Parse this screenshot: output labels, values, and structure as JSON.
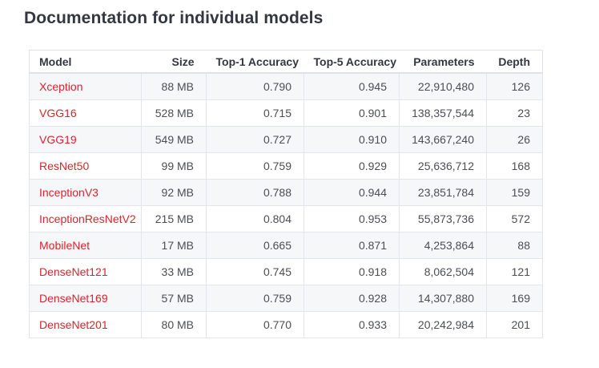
{
  "page": {
    "title": "Documentation for individual models"
  },
  "table": {
    "columns": [
      {
        "label": "Model"
      },
      {
        "label": "Size"
      },
      {
        "label": "Top-1 Accuracy"
      },
      {
        "label": "Top-5 Accuracy"
      },
      {
        "label": "Parameters"
      },
      {
        "label": "Depth"
      }
    ],
    "rows": [
      {
        "model": "Xception",
        "size": "88 MB",
        "top1": "0.790",
        "top5": "0.945",
        "parameters": "22,910,480",
        "depth": "126"
      },
      {
        "model": "VGG16",
        "size": "528 MB",
        "top1": "0.715",
        "top5": "0.901",
        "parameters": "138,357,544",
        "depth": "23"
      },
      {
        "model": "VGG19",
        "size": "549 MB",
        "top1": "0.727",
        "top5": "0.910",
        "parameters": "143,667,240",
        "depth": "26"
      },
      {
        "model": "ResNet50",
        "size": "99 MB",
        "top1": "0.759",
        "top5": "0.929",
        "parameters": "25,636,712",
        "depth": "168"
      },
      {
        "model": "InceptionV3",
        "size": "92 MB",
        "top1": "0.788",
        "top5": "0.944",
        "parameters": "23,851,784",
        "depth": "159"
      },
      {
        "model": "InceptionResNetV2",
        "size": "215 MB",
        "top1": "0.804",
        "top5": "0.953",
        "parameters": "55,873,736",
        "depth": "572"
      },
      {
        "model": "MobileNet",
        "size": "17 MB",
        "top1": "0.665",
        "top5": "0.871",
        "parameters": "4,253,864",
        "depth": "88"
      },
      {
        "model": "DenseNet121",
        "size": "33 MB",
        "top1": "0.745",
        "top5": "0.918",
        "parameters": "8,062,504",
        "depth": "121"
      },
      {
        "model": "DenseNet169",
        "size": "57 MB",
        "top1": "0.759",
        "top5": "0.928",
        "parameters": "14,307,880",
        "depth": "169"
      },
      {
        "model": "DenseNet201",
        "size": "80 MB",
        "top1": "0.770",
        "top5": "0.933",
        "parameters": "20,242,984",
        "depth": "201"
      }
    ]
  },
  "colors": {
    "link_red": "#d9232e",
    "heading_text": "#333740",
    "cell_text": "#4c4e54",
    "row_stripe": "#f6f7f9",
    "table_border": "#e1e2e8",
    "page_background": "#ffffff"
  }
}
